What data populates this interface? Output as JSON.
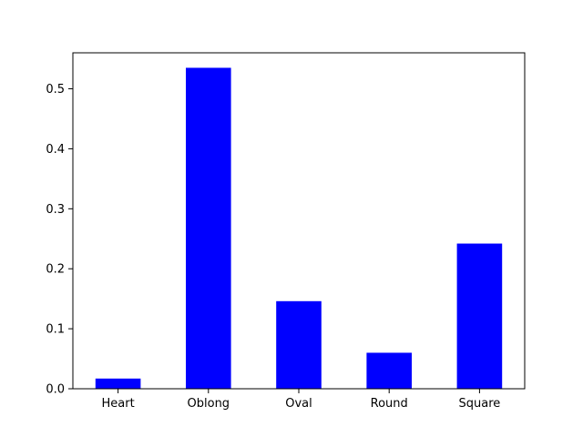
{
  "chart_data": {
    "type": "bar",
    "title": "",
    "xlabel": "",
    "ylabel": "",
    "categories": [
      "Heart",
      "Oblong",
      "Oval",
      "Round",
      "Square"
    ],
    "values": [
      0.017,
      0.535,
      0.146,
      0.06,
      0.242
    ],
    "ylim": [
      0,
      0.56
    ],
    "yticks": [
      0.0,
      0.1,
      0.2,
      0.3,
      0.4,
      0.5
    ],
    "ytick_labels": [
      "0.0",
      "0.1",
      "0.2",
      "0.3",
      "0.4",
      "0.5"
    ],
    "grid": false,
    "colors": {
      "bar": "#0000ff",
      "axis": "#000000"
    }
  }
}
